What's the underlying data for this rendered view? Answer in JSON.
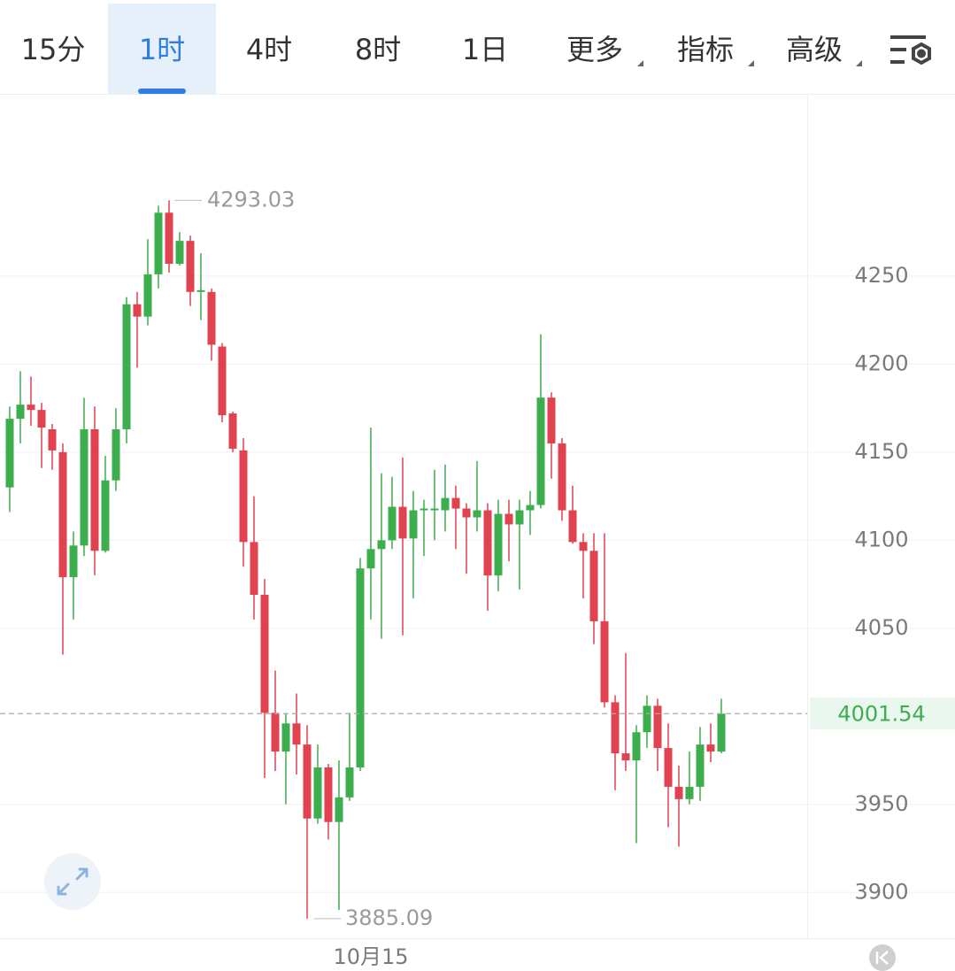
{
  "tabs": [
    "15分",
    "1时",
    "4时",
    "8时",
    "1日",
    "更多",
    "指标",
    "高级"
  ],
  "active_tab": 1,
  "chart_data": {
    "type": "candlestick",
    "up_color": "#3dae4e",
    "down_color": "#e0424f",
    "categories": [
      null,
      null,
      null,
      null,
      null,
      null,
      null,
      null,
      null,
      null,
      null,
      null,
      null,
      null,
      null,
      null,
      null,
      null,
      null,
      null,
      null,
      null,
      null,
      null,
      null,
      null,
      null,
      null,
      null,
      null,
      null,
      null,
      null,
      null,
      "10月15",
      null,
      null,
      null,
      null,
      null,
      null,
      null,
      null,
      null,
      null,
      null,
      null,
      null,
      null,
      null,
      null,
      null,
      null,
      null,
      null,
      null,
      null,
      null,
      null,
      null,
      null,
      null,
      null,
      null,
      null,
      null,
      null,
      null
    ],
    "open": [
      4130,
      4169,
      4177,
      4174,
      4163,
      4150,
      4079,
      4097,
      4163,
      4094,
      4134,
      4163,
      4234,
      4227,
      4251,
      4286,
      4257,
      4270,
      4241,
      4241,
      4210,
      4172,
      4151,
      4099,
      4069,
      4002,
      3980,
      3996,
      3984,
      3942,
      3971,
      3940,
      3954,
      3971,
      4084,
      4095,
      4100,
      4119,
      4101,
      4117,
      4117,
      4117,
      4124,
      4118,
      4113,
      4117,
      4080,
      4115,
      4109,
      4117,
      4120,
      4181,
      4155,
      4117,
      4099,
      4094,
      4054,
      4008,
      3979,
      3975,
      3991,
      4006,
      3982,
      3960,
      3953,
      3960,
      3984,
      3980
    ],
    "high": [
      4176,
      4196,
      4193,
      4178,
      4166,
      4155,
      4105,
      4181,
      4176,
      4148,
      4175,
      4238,
      4241,
      4271,
      4290,
      4293.03,
      4275,
      4273,
      4263,
      4243,
      4212,
      4173,
      4158,
      4125,
      4078,
      4026,
      4002,
      4013,
      3995,
      3984,
      3973,
      3975,
      4002,
      4090,
      4164,
      4138,
      4136,
      4147,
      4128,
      4123,
      4140,
      4143,
      4131,
      4121,
      4145,
      4121,
      4123,
      4123,
      4123,
      4128,
      4217,
      4184,
      4158,
      4131,
      4104,
      4104,
      4104,
      4012,
      4036,
      3995,
      4012,
      4010,
      3996,
      3972,
      3980,
      3994,
      3996,
      4010
    ],
    "low": [
      4116,
      4155,
      4165,
      4141,
      4140,
      4035,
      4055,
      4091,
      4080,
      4093,
      4128,
      4155,
      4198,
      4222,
      4243,
      4252,
      4256,
      4233,
      4225,
      4202,
      4167,
      4150,
      4085,
      4055,
      3965,
      3969,
      3950,
      3967,
      3885.09,
      3939,
      3930,
      3890,
      3952,
      3969,
      4055,
      4044,
      4095,
      4046,
      4067,
      4091,
      4100,
      4105,
      4095,
      4081,
      4105,
      4060,
      4071,
      4088,
      4072,
      4103,
      4118,
      4135,
      4111,
      4098,
      4067,
      4041,
      4005,
      3958,
      3969,
      3928,
      3982,
      3969,
      3937,
      3926,
      3950,
      3952,
      3974,
      3979
    ],
    "close": [
      4169,
      4177,
      4174,
      4164,
      4151,
      4079,
      4097,
      4163,
      4094,
      4134,
      4163,
      4234,
      4227,
      4251,
      4286,
      4257,
      4270,
      4241,
      4242,
      4211,
      4171,
      4152,
      4099,
      4069,
      4002,
      3980,
      3996,
      3984,
      3942,
      3971,
      3940,
      3954,
      3971,
      4084,
      4095,
      4100,
      4119,
      4101,
      4117,
      4118,
      4118,
      4124,
      4118,
      4113,
      4117,
      4080,
      4115,
      4109,
      4117,
      4120,
      4181,
      4155,
      4117,
      4099,
      4094,
      4054,
      4008,
      3979,
      3975,
      3991,
      4006,
      3982,
      3960,
      3953,
      3960,
      3984,
      3980,
      4001.54
    ],
    "ylim": [
      3874,
      4353
    ],
    "yticks": [
      3900,
      3950,
      4050,
      4100,
      4150,
      4200,
      4250
    ],
    "grid": true,
    "high_label": 4293.03,
    "low_label": 3885.09,
    "last_price": 4001.54
  }
}
